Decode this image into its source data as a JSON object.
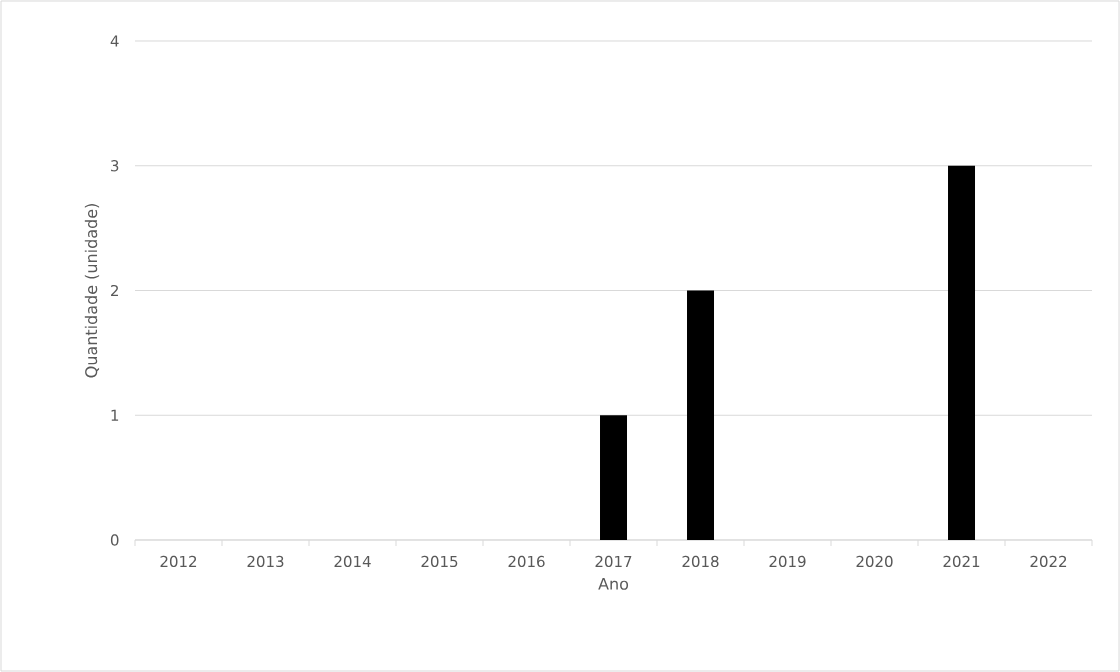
{
  "chart_data": {
    "type": "bar",
    "xlabel": "Ano",
    "ylabel": "Quantidade (unidade)",
    "categories": [
      "2012",
      "2013",
      "2014",
      "2015",
      "2016",
      "2017",
      "2018",
      "2019",
      "2020",
      "2021",
      "2022"
    ],
    "values": [
      0,
      0,
      0,
      0,
      0,
      1,
      2,
      0,
      0,
      3,
      0
    ],
    "color": "#000000",
    "ylim": [
      0,
      4
    ],
    "yticks": [
      0,
      1,
      2,
      3,
      4
    ],
    "grid": "y"
  }
}
